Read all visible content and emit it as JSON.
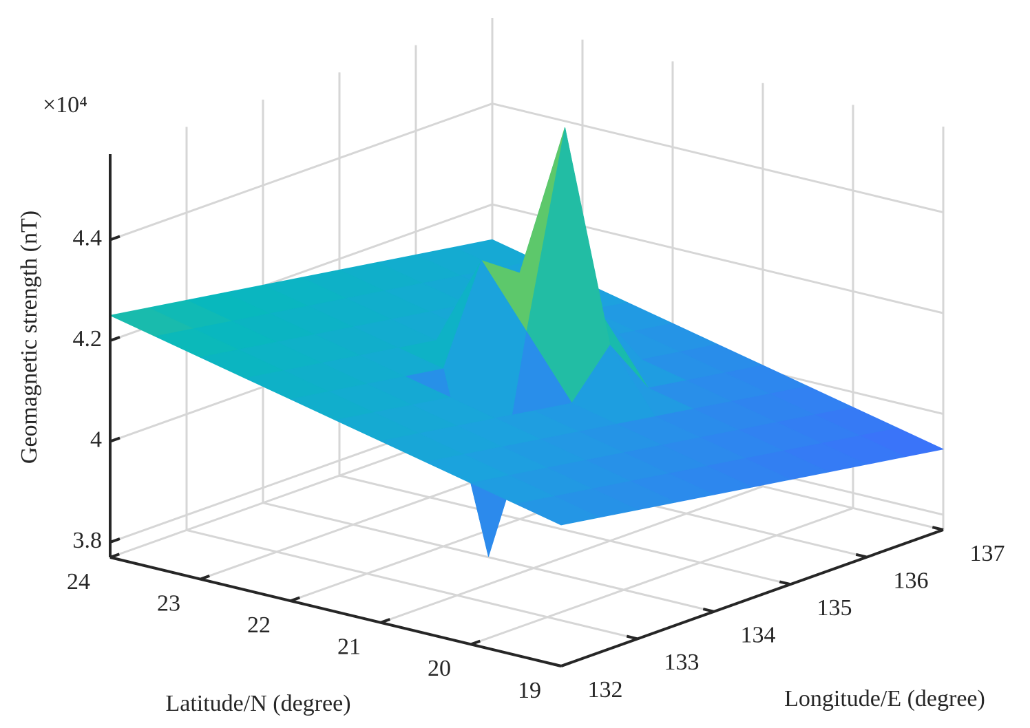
{
  "chart_data": {
    "type": "surface3d",
    "xlabel": "Longitude/E (degree)",
    "ylabel": "Latitude/N (degree)",
    "zlabel": "Geomagnetic strength (nT)",
    "z_multiplier": "×10⁴",
    "x": [
      132,
      132.5,
      133,
      133.5,
      134,
      134.5,
      135,
      135.5,
      136,
      136.5,
      137
    ],
    "y": [
      19,
      19.5,
      20,
      20.5,
      21,
      21.5,
      22,
      22.5,
      23,
      23.5,
      24
    ],
    "z": [
      [
        4.05,
        4.038,
        4.026,
        4.014,
        4.002,
        3.99,
        3.978,
        3.966,
        3.954,
        3.942,
        3.93
      ],
      [
        4.07,
        4.058,
        4.046,
        4.034,
        4.022,
        4.01,
        3.998,
        3.986,
        3.974,
        3.962,
        3.95
      ],
      [
        4.09,
        4.078,
        4.066,
        4.054,
        4.042,
        4.03,
        4.018,
        4.006,
        3.994,
        3.982,
        3.97
      ],
      [
        4.11,
        4.098,
        4.086,
        4.074,
        4.062,
        4.05,
        4.038,
        4.026,
        4.014,
        4.002,
        3.99
      ],
      [
        4.13,
        4.118,
        4.106,
        4.094,
        4.082,
        4.07,
        4.158,
        4.046,
        4.034,
        4.022,
        4.01
      ],
      [
        4.15,
        4.138,
        4.126,
        4.114,
        3.772,
        4.19,
        4.568,
        4.166,
        4.054,
        4.042,
        4.03
      ],
      [
        4.17,
        4.158,
        4.146,
        4.134,
        4.122,
        4.31,
        4.258,
        4.086,
        4.074,
        4.062,
        4.05
      ],
      [
        4.19,
        4.178,
        4.166,
        4.154,
        4.142,
        4.13,
        4.118,
        4.106,
        4.094,
        4.082,
        4.07
      ],
      [
        4.21,
        4.198,
        4.186,
        4.174,
        4.162,
        4.15,
        4.138,
        4.126,
        4.114,
        4.102,
        4.09
      ],
      [
        4.23,
        4.218,
        4.206,
        4.194,
        4.182,
        4.17,
        4.158,
        4.146,
        4.134,
        4.122,
        4.11
      ],
      [
        4.25,
        4.238,
        4.226,
        4.214,
        4.202,
        4.19,
        4.178,
        4.166,
        4.154,
        4.142,
        4.13
      ]
    ],
    "xlim": [
      132,
      137
    ],
    "ylim": [
      19,
      24
    ],
    "zlim": [
      3.77,
      4.57
    ],
    "xticks": [
      132,
      133,
      134,
      135,
      136,
      137
    ],
    "yticks": [
      19,
      20,
      21,
      22,
      23,
      24
    ],
    "zticks": [
      3.8,
      4,
      4.2,
      4.4
    ],
    "grid": true,
    "colormap": "parula"
  }
}
